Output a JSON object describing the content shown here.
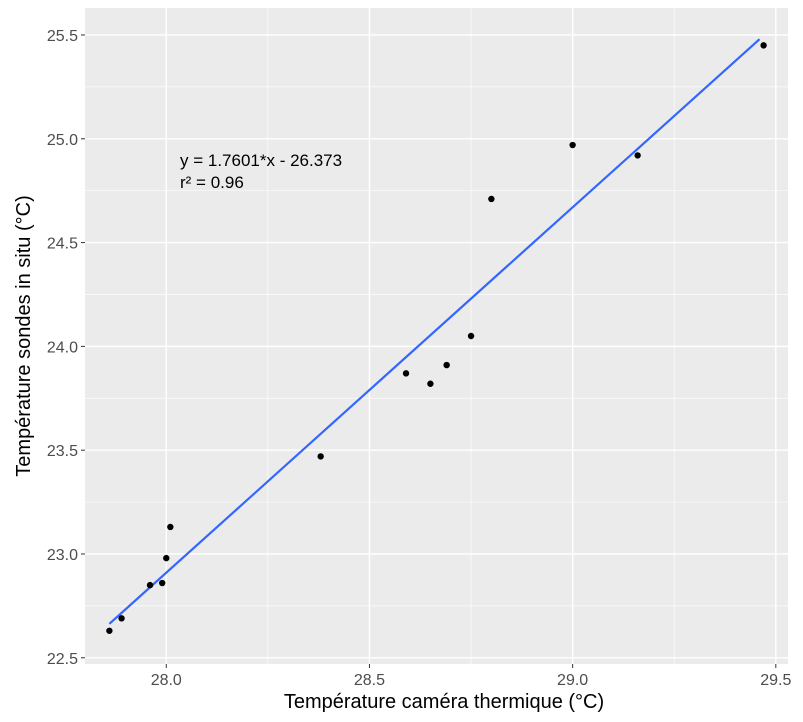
{
  "chart_data": {
    "type": "scatter",
    "title": "",
    "xlabel": "Température caméra thermique (°C)",
    "ylabel": "Température sondes in situ (°C)",
    "xlim": [
      27.8,
      29.53
    ],
    "ylim": [
      22.47,
      25.63
    ],
    "x_ticks": [
      28.0,
      28.5,
      29.0,
      29.5
    ],
    "y_ticks": [
      22.5,
      23.0,
      23.5,
      24.0,
      24.5,
      25.0,
      25.5
    ],
    "x_tick_labels": [
      "28.0",
      "28.5",
      "29.0",
      "29.5"
    ],
    "y_tick_labels": [
      "22.5",
      "23.0",
      "23.5",
      "24.0",
      "24.5",
      "25.0",
      "25.5"
    ],
    "grid": true,
    "legend": "none",
    "points": [
      {
        "x": 27.86,
        "y": 22.63
      },
      {
        "x": 27.89,
        "y": 22.69
      },
      {
        "x": 27.96,
        "y": 22.85
      },
      {
        "x": 27.99,
        "y": 22.86
      },
      {
        "x": 28.0,
        "y": 22.98
      },
      {
        "x": 28.01,
        "y": 23.13
      },
      {
        "x": 28.38,
        "y": 23.47
      },
      {
        "x": 28.59,
        "y": 23.87
      },
      {
        "x": 28.65,
        "y": 23.82
      },
      {
        "x": 28.69,
        "y": 23.91
      },
      {
        "x": 28.75,
        "y": 24.05
      },
      {
        "x": 28.8,
        "y": 24.71
      },
      {
        "x": 29.0,
        "y": 24.97
      },
      {
        "x": 29.16,
        "y": 24.92
      },
      {
        "x": 29.47,
        "y": 25.45
      }
    ],
    "fit_line": {
      "slope": 1.7601,
      "intercept": -26.373,
      "x_range": [
        27.86,
        29.46
      ]
    },
    "annotations": [
      "y = 1.7601*x - 26.373",
      "r² = 0.96"
    ],
    "colors": {
      "panel_background": "#ebebeb",
      "grid": "#ffffff",
      "points": "#000000",
      "fit_line": "#3366ff"
    }
  }
}
